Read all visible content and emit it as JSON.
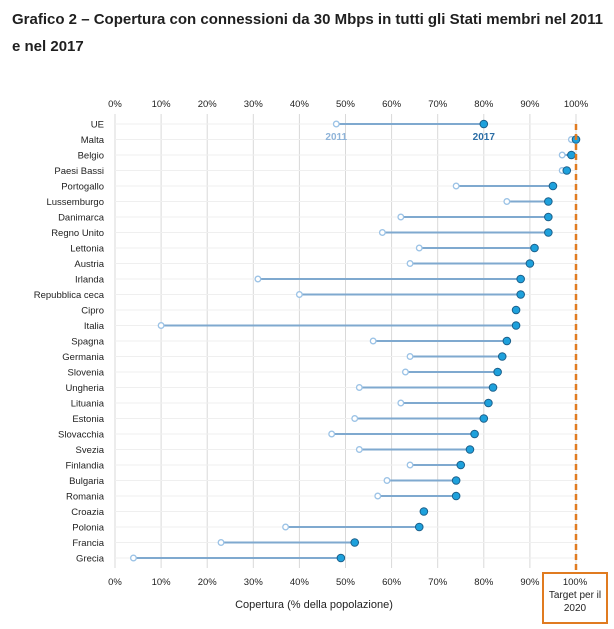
{
  "title": "Grafico 2 – Copertura con connessioni da 30 Mbps in tutti gli Stati membri nel 2011 e nel 2017",
  "chart_data": {
    "type": "dot",
    "title": "Grafico 2 – Copertura con connessioni da 30 Mbps in tutti gli Stati membri nel 2011 e nel 2017",
    "xlabel": "Copertura (% della popolazione)",
    "xlim": [
      0,
      100
    ],
    "xticks": [
      "0%",
      "10%",
      "20%",
      "30%",
      "40%",
      "50%",
      "60%",
      "70%",
      "80%",
      "90%",
      "100%"
    ],
    "categories": [
      "UE",
      "Malta",
      "Belgio",
      "Paesi Bassi",
      "Portogallo",
      "Lussemburgo",
      "Danimarca",
      "Regno Unito",
      "Lettonia",
      "Austria",
      "Irlanda",
      "Repubblica ceca",
      "Cipro",
      "Italia",
      "Spagna",
      "Germania",
      "Slovenia",
      "Ungheria",
      "Lituania",
      "Estonia",
      "Slovacchia",
      "Svezia",
      "Finlandia",
      "Bulgaria",
      "Romania",
      "Croazia",
      "Polonia",
      "Francia",
      "Grecia"
    ],
    "series": [
      {
        "name": "2011",
        "values": [
          48,
          99,
          97,
          97,
          74,
          85,
          62,
          58,
          66,
          64,
          31,
          40,
          null,
          10,
          56,
          64,
          63,
          53,
          62,
          52,
          47,
          53,
          64,
          59,
          57,
          null,
          37,
          23,
          4
        ]
      },
      {
        "name": "2017",
        "values": [
          80,
          100,
          99,
          98,
          95,
          94,
          94,
          94,
          91,
          90,
          88,
          88,
          87,
          87,
          85,
          84,
          83,
          82,
          81,
          80,
          78,
          77,
          75,
          74,
          74,
          67,
          66,
          52,
          49
        ]
      }
    ],
    "annotations": [
      "2011",
      "2017"
    ],
    "target": {
      "value": 100,
      "label": "Target per il 2020",
      "value_label": "100%"
    },
    "colors": {
      "series_2011": "#9cc3e6",
      "series_2017": "#1ea1dc",
      "connector": "#7fa9cf",
      "target": "#e07b20",
      "grid": "#d9d9d9"
    },
    "grid": true
  }
}
